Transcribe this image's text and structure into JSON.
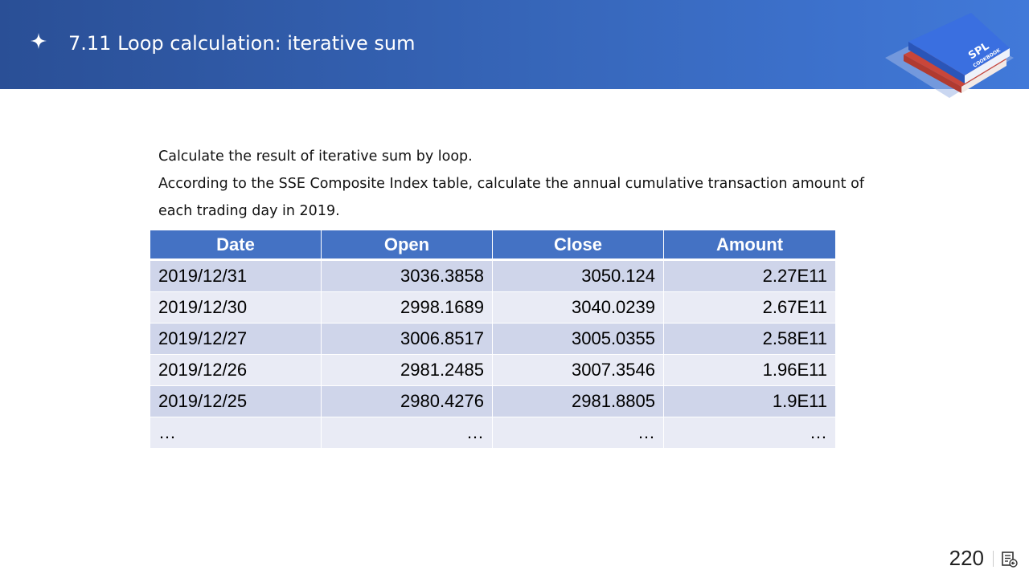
{
  "header": {
    "title": "7.11 Loop calculation: iterative sum",
    "bullet_icon": "four-point-star-icon",
    "logo": {
      "text_main": "SPL",
      "text_sub": "COOKBOOK"
    },
    "colors": {
      "gradient_start": "#2a4f96",
      "gradient_end": "#4179d9"
    }
  },
  "description": {
    "line1": "Calculate the result of iterative sum by loop.",
    "line2": "According to the SSE Composite Index table, calculate the annual cumulative transaction amount of",
    "line3": "each trading day in 2019."
  },
  "table": {
    "headers": [
      "Date",
      "Open",
      "Close",
      "Amount"
    ],
    "rows": [
      [
        "2019/12/31",
        "3036.3858",
        "3050.124",
        "2.27E11"
      ],
      [
        "2019/12/30",
        "2998.1689",
        "3040.0239",
        "2.67E11"
      ],
      [
        "2019/12/27",
        "3006.8517",
        "3005.0355",
        "2.58E11"
      ],
      [
        "2019/12/26",
        "2981.2485",
        "3007.3546",
        "1.96E11"
      ],
      [
        "2019/12/25",
        "2980.4276",
        "2981.8805",
        "1.9E11"
      ],
      [
        "…",
        "…",
        "…",
        "…"
      ]
    ],
    "colors": {
      "header": "#4472c4",
      "row_odd": "#cfd5ea",
      "row_even": "#e9ebf5"
    }
  },
  "footer": {
    "page_number": "220",
    "icon": "slide-notes-icon"
  }
}
